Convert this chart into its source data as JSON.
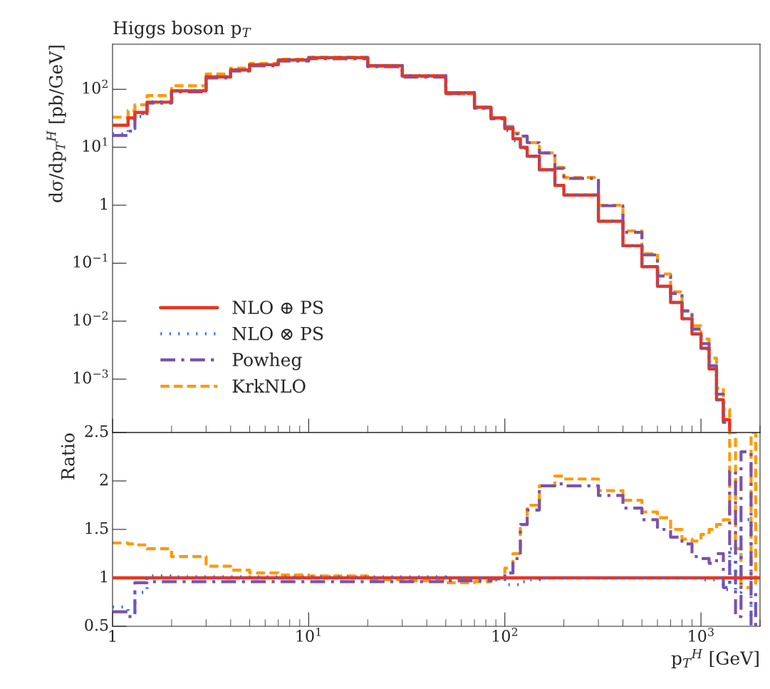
{
  "chart_data": [
    {
      "type": "step",
      "title": "Higgs boson p$_{T}$",
      "ylabel": "dσ/dp$_{T}$$^{H}$ [pb/GeV]",
      "log": "xy",
      "tick_labels": "y",
      "legend": "bottom left",
      "x": [
        1,
        1.2,
        1.3,
        1.5,
        2,
        3,
        4,
        5,
        7,
        10,
        20,
        30,
        50,
        70,
        85,
        100,
        110,
        120,
        130,
        150,
        180,
        200,
        300,
        400,
        500,
        600,
        700,
        800,
        900,
        1000,
        1100,
        1200,
        1300,
        1400
      ],
      "xlim": [
        1,
        2000
      ],
      "xticks": [
        1,
        10,
        100,
        1000
      ],
      "ylim": [
        0.00012,
        600
      ],
      "yticks": [
        {
          "value": 0.001,
          "label": "10$^{−3}$"
        },
        {
          "value": 0.01,
          "label": "10$^{−2}$"
        },
        {
          "value": 0.1,
          "label": "10$^{−1}$"
        },
        {
          "value": 1,
          "label": "1"
        },
        {
          "value": 10,
          "label": "10$^{1}$"
        },
        {
          "value": 100,
          "label": "10$^{2}$"
        }
      ],
      "series": [
        {
          "name": "NLO ⊕ PS",
          "color": "#e8361e",
          "line_style": "solid",
          "values": [
            24,
            32,
            40,
            60,
            94,
            163,
            215,
            265,
            320,
            350,
            255,
            170,
            87,
            49,
            32,
            21,
            14,
            10,
            7,
            4.1,
            2.2,
            1.5,
            0.53,
            0.2,
            0.087,
            0.04,
            0.021,
            0.011,
            0.006,
            0.0034,
            0.0015,
            0.00044,
            0.0002,
            0.00013
          ]
        },
        {
          "name": "NLO ⊗ PS",
          "color": "#3366ff",
          "line_style": "dotted",
          "values": [
            17,
            21,
            34,
            61,
            95,
            165,
            217,
            268,
            323,
            353,
            258,
            172,
            88,
            49,
            31.5,
            19.5,
            13,
            9.6,
            6.9,
            4.1,
            2.2,
            1.5,
            0.53,
            0.2,
            0.087,
            0.04,
            0.021,
            0.011,
            0.006,
            0.0033,
            0.0015,
            0.00044,
            0.00018,
            0.00017
          ]
        },
        {
          "name": "Powheg",
          "color": "#7b52ab",
          "line_style": "dashdot",
          "values": [
            16,
            19,
            38,
            58,
            90,
            157,
            206,
            254,
            307,
            336,
            245,
            163,
            84,
            47,
            31,
            22,
            17,
            15.5,
            12,
            8,
            4.3,
            2.9,
            0.98,
            0.34,
            0.139,
            0.06,
            0.03,
            0.015,
            0.0073,
            0.0041,
            0.0017,
            0.00055,
            0.00018,
            0.00015
          ]
        },
        {
          "name": "KrkNLO",
          "color": "#ff9900",
          "line_style": "dashed",
          "values": [
            33,
            43,
            54,
            78,
            115,
            183,
            232,
            278,
            330,
            357,
            250,
            165,
            83,
            47,
            32,
            23,
            17.5,
            15.5,
            12,
            8,
            4.5,
            3,
            1.0,
            0.36,
            0.146,
            0.065,
            0.032,
            0.015,
            0.0083,
            0.0049,
            0.0023,
            0.0007,
            0.0003,
            0.00016
          ]
        }
      ]
    },
    {
      "type": "step",
      "ylabel": "Ratio",
      "xlabel": "p$_{T}$$^{H}$ [GeV]",
      "log": "x",
      "x": [
        1,
        1.2,
        1.3,
        1.5,
        2,
        3,
        4,
        5,
        7,
        10,
        20,
        30,
        50,
        70,
        85,
        100,
        110,
        120,
        130,
        150,
        180,
        200,
        300,
        400,
        500,
        600,
        700,
        800,
        900,
        1000,
        1100,
        1200,
        1300,
        1400,
        1500,
        1600,
        1800,
        1900
      ],
      "xlim": [
        1,
        2000
      ],
      "xticks": [
        {
          "value": 1,
          "label": "1"
        },
        {
          "value": 10,
          "label": "10$^{1}$"
        },
        {
          "value": 100,
          "label": "10$^{2}$"
        },
        {
          "value": 1000,
          "label": "10$^{3}$"
        }
      ],
      "ylim": [
        0.5,
        2.5
      ],
      "yticks": [
        0.5,
        1,
        1.5,
        2,
        2.5
      ],
      "series": [
        {
          "color": "#e8361e",
          "line_style": "solid",
          "x": [
            1,
            2000
          ],
          "values": [
            1,
            1
          ]
        },
        {
          "color": "#3366ff",
          "line_style": "dotted",
          "values": [
            0.7,
            0.65,
            0.85,
            1.02,
            1.01,
            1.01,
            1.01,
            1.01,
            1.01,
            1.01,
            1.01,
            1.01,
            1.0,
            1.0,
            0.98,
            0.93,
            0.93,
            0.96,
            0.98,
            1.0,
            1.0,
            1.0,
            1.0,
            1.0,
            1.0,
            1.0,
            1.0,
            1.0,
            1.0,
            0.98,
            0.98,
            1.0,
            0.88,
            1.3,
            0.85,
            1.6,
            0.6,
            0.75
          ]
        },
        {
          "color": "#7b52ab",
          "line_style": "dashdot",
          "values": [
            0.65,
            0.6,
            0.95,
            0.96,
            0.96,
            0.96,
            0.96,
            0.96,
            0.96,
            0.96,
            0.96,
            0.96,
            0.97,
            0.97,
            0.99,
            1.05,
            1.2,
            1.55,
            1.7,
            1.95,
            1.97,
            1.95,
            1.85,
            1.72,
            1.6,
            1.5,
            1.42,
            1.35,
            1.22,
            1.2,
            1.15,
            1.25,
            0.9,
            2.1,
            0.6,
            2.3,
            0.5,
            0.9
          ]
        },
        {
          "color": "#ff9900",
          "line_style": "dashed",
          "values": [
            1.36,
            1.35,
            1.34,
            1.3,
            1.22,
            1.12,
            1.08,
            1.05,
            1.03,
            1.02,
            0.98,
            0.97,
            0.95,
            0.96,
            1.0,
            1.1,
            1.25,
            1.55,
            1.75,
            1.95,
            2.05,
            2.02,
            1.9,
            1.8,
            1.68,
            1.62,
            1.5,
            1.4,
            1.38,
            1.45,
            1.5,
            1.55,
            1.6,
            2.5,
            1.3,
            0.9,
            2.5,
            0.9
          ]
        }
      ]
    }
  ]
}
